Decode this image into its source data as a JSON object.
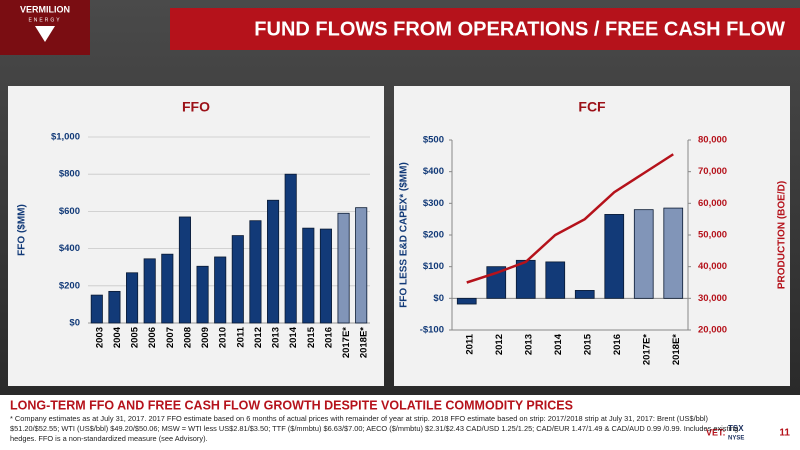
{
  "header": {
    "logo": "VERMILION",
    "logo_sub": "ENERGY",
    "title": "FUND FLOWS FROM OPERATIONS / FREE CASH FLOW"
  },
  "chart_data": [
    {
      "type": "bar",
      "title": "FFO",
      "y_label": "FFO ($MM)",
      "categories": [
        "2003",
        "2004",
        "2005",
        "2006",
        "2007",
        "2008",
        "2009",
        "2010",
        "2011",
        "2012",
        "2013",
        "2014",
        "2015",
        "2016",
        "2017E*",
        "2018E*"
      ],
      "series": [
        {
          "values": [
            150,
            170,
            270,
            345,
            370,
            570,
            305,
            355,
            470,
            550,
            660,
            800,
            510,
            505,
            590,
            620
          ],
          "colors": [
            "#123a78",
            "#123a78",
            "#123a78",
            "#123a78",
            "#123a78",
            "#123a78",
            "#123a78",
            "#123a78",
            "#123a78",
            "#123a78",
            "#123a78",
            "#123a78",
            "#123a78",
            "#123a78",
            "#8195b8",
            "#8195b8"
          ]
        }
      ],
      "ylim": [
        0,
        1000
      ],
      "yticks": [
        {
          "value": 0,
          "label": "$0"
        },
        {
          "value": 200,
          "label": "$200"
        },
        {
          "value": 400,
          "label": "$400"
        },
        {
          "value": 600,
          "label": "$600"
        },
        {
          "value": 800,
          "label": "$800"
        },
        {
          "value": 1000,
          "label": "$1,000"
        }
      ],
      "grid": true
    },
    {
      "type": "bar",
      "title": "FCF",
      "y_label": "FFO LESS E&D CAPEX* ($MM)",
      "y2_label": "PRODUCTION (BOE/D)",
      "categories": [
        "2011",
        "2012",
        "2013",
        "2014",
        "2015",
        "2016",
        "2017E*",
        "2018E*"
      ],
      "series": [
        {
          "values": [
            -18,
            100,
            120,
            115,
            25,
            265,
            280,
            285
          ],
          "colors": [
            "#123a78",
            "#123a78",
            "#123a78",
            "#123a78",
            "#123a78",
            "#123a78",
            "#8195b8",
            "#8195b8"
          ]
        },
        {
          "type": "line",
          "axis": "y2",
          "color": "#b5121b",
          "values": [
            35000,
            38000,
            41500,
            50000,
            55000,
            63500,
            69500,
            75500
          ]
        }
      ],
      "ylim": [
        -100,
        500
      ],
      "yticks": [
        {
          "value": -100,
          "label": "-$100"
        },
        {
          "value": 0,
          "label": "$0"
        },
        {
          "value": 100,
          "label": "$100"
        },
        {
          "value": 200,
          "label": "$200"
        },
        {
          "value": 300,
          "label": "$300"
        },
        {
          "value": 400,
          "label": "$400"
        },
        {
          "value": 500,
          "label": "$500"
        }
      ],
      "y2lim": [
        20000,
        80000
      ],
      "y2ticks": [
        {
          "value": 20000,
          "label": "20,000"
        },
        {
          "value": 30000,
          "label": "30,000"
        },
        {
          "value": 40000,
          "label": "40,000"
        },
        {
          "value": 50000,
          "label": "50,000"
        },
        {
          "value": 60000,
          "label": "60,000"
        },
        {
          "value": 70000,
          "label": "70,000"
        },
        {
          "value": 80000,
          "label": "80,000"
        }
      ],
      "grid": false
    }
  ],
  "footer": {
    "headline": "LONG-TERM FFO AND FREE CASH FLOW GROWTH DESPITE VOLATILE COMMODITY PRICES",
    "note": "* Company estimates as at July 31, 2017. 2017 FFO estimate based on 6 months of actual prices with remainder of year at strip. 2018 FFO estimate based on strip: 2017/2018 strip at July 31, 2017: Brent (US$/bbl) $51.20/$52.55; WTI (US$/bbl) $49.20/$50.06; MSW = WTI less US$2.81/$3.50; TTF ($/mmbtu) $6.63/$7.00; AECO ($/mmbtu) $2.31/$2.43 CAD/USD 1.25/1.25; CAD/EUR 1.47/1.49 & CAD/AUD 0.99 /0.99. Includes existing hedges. FFO is a non-standardized measure (see Advisory).",
    "ticker": "VET:",
    "exchange1": "TSX",
    "exchange2": "NYSE",
    "page": "11"
  }
}
